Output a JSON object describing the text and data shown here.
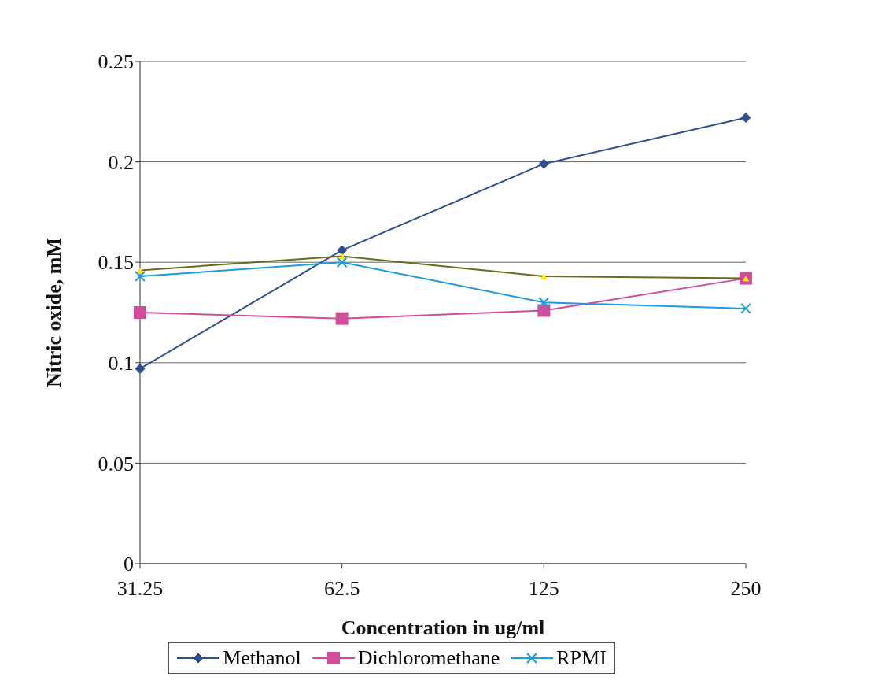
{
  "chart_data": {
    "type": "line",
    "xlabel": "Concentration in ug/ml",
    "ylabel": "Nitric oxide, mM",
    "categories": [
      "31.25",
      "62.5",
      "125",
      "250"
    ],
    "series": [
      {
        "name": "Methanol",
        "color": "#2b4f8f",
        "marker": "diamond",
        "values": [
          0.097,
          0.156,
          0.199,
          0.222
        ]
      },
      {
        "name": "Dichloromethane",
        "color": "#d24c9c",
        "marker": "square",
        "values": [
          0.125,
          0.122,
          0.126,
          0.142
        ]
      },
      {
        "color": "#6b6b1a",
        "marker": "triangle",
        "values": [
          0.146,
          0.153,
          0.143,
          0.142
        ]
      },
      {
        "name": "RPMI",
        "color": "#1f9be0",
        "marker": "cross",
        "values": [
          0.143,
          0.15,
          0.13,
          0.127
        ]
      }
    ],
    "ylim": [
      0,
      0.25
    ],
    "yticks": [
      0,
      0.05,
      0.1,
      0.15,
      0.2,
      0.25
    ],
    "grid": "y",
    "legend": "bottom",
    "line_style": "solid"
  }
}
